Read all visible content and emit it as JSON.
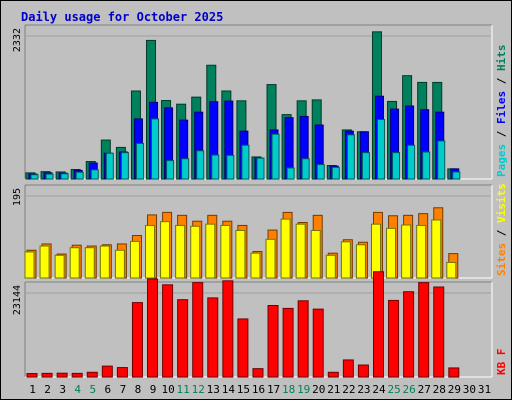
{
  "chart_data": {
    "title": "Daily usage for October 2025",
    "type": "bar",
    "days": [
      "1",
      "2",
      "3",
      "4",
      "5",
      "6",
      "7",
      "8",
      "9",
      "10",
      "11",
      "12",
      "13",
      "14",
      "15",
      "16",
      "17",
      "18",
      "19",
      "20",
      "21",
      "22",
      "23",
      "24",
      "25",
      "26",
      "27",
      "28",
      "29",
      "30",
      "31"
    ],
    "weekend_days": [
      "4",
      "5",
      "11",
      "12",
      "18",
      "19",
      "25",
      "26"
    ],
    "panels": [
      {
        "id": "top",
        "ylabel_max": "2332",
        "ymax": 2332,
        "legend": [
          "Pages",
          "Files",
          "Hits"
        ],
        "legend_colors": [
          "#00cccc",
          "#0000ff",
          "#00805c"
        ],
        "series": [
          {
            "name": "Hits",
            "color": "#00805c",
            "values": [
              100,
              120,
              115,
              155,
              285,
              635,
              515,
              1435,
              2260,
              1280,
              1220,
              1335,
              1855,
              1435,
              1275,
              360,
              1540,
              1050,
              1275,
              1290,
              220,
              800,
              770,
              2400,
              1265,
              1685,
              1575,
              1575,
              165,
              0,
              0
            ]
          },
          {
            "name": "Files",
            "color": "#0000ff",
            "values": [
              80,
              100,
              95,
              140,
              260,
              420,
              440,
              980,
              1250,
              1160,
              960,
              1090,
              1260,
              1270,
              780,
              340,
              800,
              1000,
              1020,
              880,
              210,
              780,
              770,
              1350,
              1140,
              1190,
              1130,
              1090,
              165,
              0,
              0
            ]
          },
          {
            "name": "Pages",
            "color": "#00cccc",
            "values": [
              70,
              80,
              85,
              110,
              150,
              420,
              430,
              580,
              980,
              300,
              330,
              460,
              390,
              385,
              550,
              340,
              730,
              180,
              330,
              235,
              190,
              720,
              430,
              970,
              430,
              550,
              440,
              620,
              115,
              0,
              0
            ]
          }
        ]
      },
      {
        "id": "middle",
        "ylabel_max": "195",
        "ymax": 195,
        "legend": [
          "Sites",
          "Visits"
        ],
        "legend_colors": [
          "#ff8000",
          "#ffff00"
        ],
        "series": [
          {
            "name": "Sites",
            "color": "#ff8000",
            "values": [
              66,
              81,
              57,
              78,
              76,
              79,
              81,
              101,
              150,
              156,
              149,
              135,
              149,
              135,
              125,
              63,
              114,
              156,
              132,
              149,
              59,
              91,
              85,
              156,
              148,
              149,
              153,
              167,
              58,
              0,
              0
            ]
          },
          {
            "name": "Visits",
            "color": "#ffff00",
            "values": [
              62,
              76,
              54,
              72,
              72,
              76,
              66,
              87,
              125,
              134,
              125,
              123,
              128,
              125,
              113,
              59,
              92,
              140,
              128,
              113,
              54,
              86,
              79,
              128,
              118,
              126,
              125,
              138,
              37,
              0,
              0
            ]
          }
        ]
      },
      {
        "id": "bottom",
        "ylabel_max": "23144",
        "ymax": 23144,
        "legend": [
          "KB F"
        ],
        "legend_colors": [
          "#ff0000"
        ],
        "series": [
          {
            "name": "KB F",
            "color": "#ff0000",
            "values": [
              950,
              1000,
              1050,
              1000,
              1300,
              3000,
              2600,
              20500,
              27000,
              25400,
              21300,
              26000,
              21800,
              26500,
              16000,
              2300,
              19700,
              18900,
              21000,
              18700,
              1300,
              4700,
              3300,
              29000,
              21100,
              23500,
              26000,
              24800,
              2500,
              0,
              0
            ]
          }
        ]
      }
    ]
  }
}
